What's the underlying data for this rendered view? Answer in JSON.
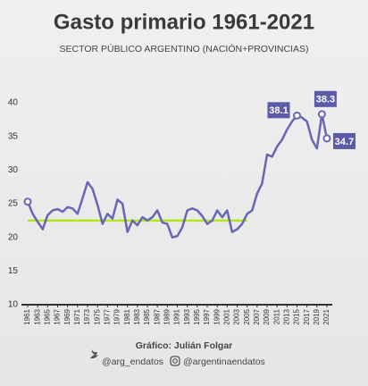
{
  "chart_data": {
    "type": "line",
    "title": "Gasto primario 1961-2021",
    "subtitle": "SECTOR PÚBLICO ARGENTINO (NACIÓN+PROVINCIAS)",
    "source": "Gráfico: Julián Folgar",
    "credits": [
      "@arg_endatos",
      "@argentinaendatos"
    ],
    "x": [
      1961,
      1962,
      1963,
      1964,
      1965,
      1966,
      1967,
      1968,
      1969,
      1970,
      1971,
      1972,
      1973,
      1974,
      1975,
      1976,
      1977,
      1978,
      1979,
      1980,
      1981,
      1982,
      1983,
      1984,
      1985,
      1986,
      1987,
      1988,
      1989,
      1990,
      1991,
      1992,
      1993,
      1994,
      1995,
      1996,
      1997,
      1998,
      1999,
      2000,
      2001,
      2002,
      2003,
      2004,
      2005,
      2006,
      2007,
      2008,
      2009,
      2010,
      2011,
      2012,
      2013,
      2014,
      2015,
      2016,
      2017,
      2018,
      2019,
      2020,
      2021
    ],
    "series": [
      {
        "name": "Gasto primario",
        "color": "#6767b5",
        "values": [
          25.3,
          23.5,
          22.3,
          21.2,
          23.3,
          24.0,
          24.2,
          23.8,
          24.5,
          24.3,
          23.5,
          25.8,
          28.2,
          27.2,
          24.8,
          22.0,
          23.5,
          22.8,
          25.6,
          25.0,
          20.8,
          22.5,
          21.8,
          23.0,
          22.5,
          23.0,
          24.0,
          22.2,
          22.0,
          20.0,
          20.2,
          21.5,
          24.0,
          24.3,
          24.0,
          23.2,
          22.0,
          22.5,
          24.0,
          23.0,
          24.0,
          20.8,
          21.2,
          22.0,
          23.5,
          24.0,
          26.5,
          28.0,
          32.3,
          32.0,
          33.5,
          34.5,
          36.0,
          37.2,
          38.1,
          37.8,
          37.2,
          34.5,
          33.2,
          38.3,
          34.7
        ]
      }
    ],
    "reference_line": {
      "value": 22.5,
      "x": [
        1961,
        2005
      ],
      "color": "#b5e61d"
    },
    "annotations": [
      {
        "index": 0
      },
      {
        "index": 54,
        "text": "38.1",
        "position": "left"
      },
      {
        "index": 59,
        "text": "38.3",
        "position": "above"
      },
      {
        "index": 60,
        "text": "34.7",
        "position": "right"
      }
    ],
    "xlim": [
      1961,
      2021
    ],
    "xticks": [
      1961,
      1963,
      1965,
      1967,
      1969,
      1971,
      1973,
      1975,
      1977,
      1979,
      1981,
      1983,
      1985,
      1987,
      1989,
      1991,
      1993,
      1995,
      1997,
      1999,
      2001,
      2003,
      2005,
      2007,
      2009,
      2011,
      2013,
      2015,
      2017,
      2019,
      2021
    ],
    "ylim": [
      10,
      40
    ],
    "yticks": [
      10,
      15,
      20,
      25,
      30,
      35,
      40
    ],
    "grid": false
  }
}
